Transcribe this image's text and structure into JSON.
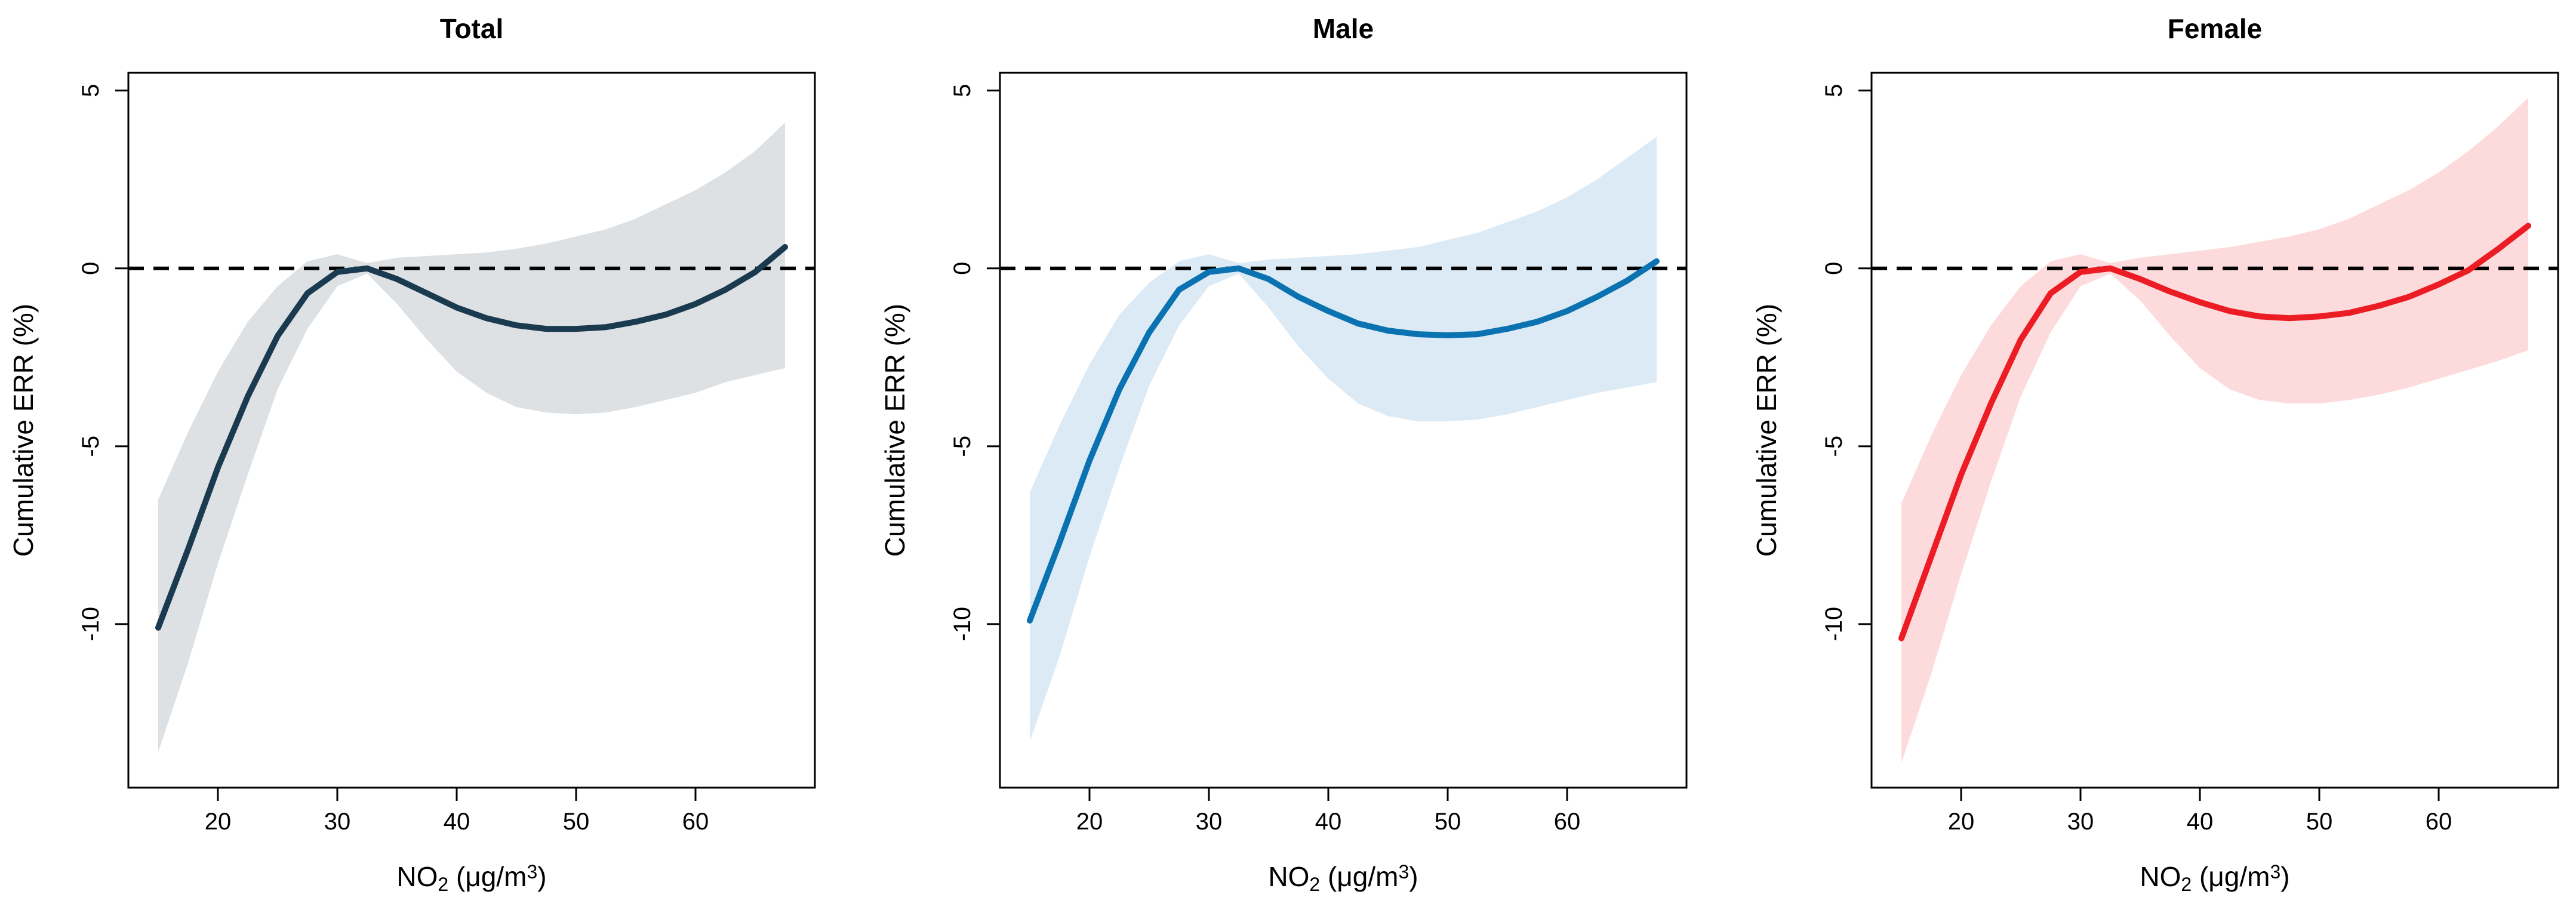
{
  "figure": {
    "reference_line_value": 0,
    "panels": [
      {
        "title": "Total",
        "line_color": "#1a3a4f",
        "band_color": "#dee1e4"
      },
      {
        "title": "Male",
        "line_color": "#0a72b0",
        "band_color": "#dceaf5"
      },
      {
        "title": "Female",
        "line_color": "#ec1c24",
        "band_color": "#fddbdc"
      }
    ]
  },
  "chart_data": [
    {
      "type": "line",
      "title": "Total",
      "xlabel": "NO2 (μg/m3)",
      "ylabel": "Cumulative ERR (%)",
      "xlim": [
        12.5,
        70
      ],
      "ylim": [
        -14.6,
        5.5
      ],
      "xticks": [
        "20",
        "30",
        "40",
        "50",
        "60"
      ],
      "yticks": [
        "5",
        "0",
        "-5",
        "-10"
      ],
      "reference_line": 0,
      "series": [
        {
          "name": "estimate",
          "x": [
            15,
            17.5,
            20,
            22.5,
            25,
            27.5,
            30,
            32.5,
            35,
            37.5,
            40,
            42.5,
            45,
            47.5,
            50,
            52.5,
            55,
            57.5,
            60,
            62.5,
            65,
            67.5
          ],
          "values": [
            -10.1,
            -7.9,
            -5.6,
            -3.6,
            -1.9,
            -0.7,
            -0.1,
            0.0,
            -0.3,
            -0.7,
            -1.1,
            -1.4,
            -1.6,
            -1.7,
            -1.7,
            -1.65,
            -1.5,
            -1.3,
            -1.0,
            -0.6,
            -0.1,
            0.6
          ]
        },
        {
          "name": "upper",
          "x": [
            15,
            17.5,
            20,
            22.5,
            25,
            27.5,
            30,
            32.5,
            35,
            37.5,
            40,
            42.5,
            45,
            47.5,
            50,
            52.5,
            55,
            57.5,
            60,
            62.5,
            65,
            67.5
          ],
          "values": [
            -6.5,
            -4.6,
            -2.9,
            -1.5,
            -0.5,
            0.2,
            0.4,
            0.15,
            0.3,
            0.35,
            0.4,
            0.45,
            0.55,
            0.7,
            0.9,
            1.1,
            1.4,
            1.8,
            2.2,
            2.7,
            3.3,
            4.1
          ]
        },
        {
          "name": "lower",
          "x": [
            15,
            17.5,
            20,
            22.5,
            25,
            27.5,
            30,
            32.5,
            35,
            37.5,
            40,
            42.5,
            45,
            47.5,
            50,
            52.5,
            55,
            57.5,
            60,
            62.5,
            65,
            67.5
          ],
          "values": [
            -13.6,
            -11.1,
            -8.3,
            -5.8,
            -3.4,
            -1.7,
            -0.5,
            -0.15,
            -1.0,
            -2.0,
            -2.9,
            -3.5,
            -3.9,
            -4.05,
            -4.1,
            -4.05,
            -3.9,
            -3.7,
            -3.5,
            -3.2,
            -3.0,
            -2.8
          ]
        }
      ]
    },
    {
      "type": "line",
      "title": "Male",
      "xlabel": "NO2 (μg/m3)",
      "ylabel": "Cumulative ERR (%)",
      "xlim": [
        12.5,
        70
      ],
      "ylim": [
        -14.6,
        5.5
      ],
      "xticks": [
        "20",
        "30",
        "40",
        "50",
        "60"
      ],
      "yticks": [
        "5",
        "0",
        "-5",
        "-10"
      ],
      "reference_line": 0,
      "series": [
        {
          "name": "estimate",
          "x": [
            15,
            17.5,
            20,
            22.5,
            25,
            27.5,
            30,
            32.5,
            35,
            37.5,
            40,
            42.5,
            45,
            47.5,
            50,
            52.5,
            55,
            57.5,
            60,
            62.5,
            65,
            67.5
          ],
          "values": [
            -9.9,
            -7.7,
            -5.4,
            -3.4,
            -1.8,
            -0.6,
            -0.1,
            0.0,
            -0.3,
            -0.8,
            -1.2,
            -1.55,
            -1.75,
            -1.85,
            -1.88,
            -1.85,
            -1.7,
            -1.5,
            -1.2,
            -0.8,
            -0.35,
            0.2
          ]
        },
        {
          "name": "upper",
          "x": [
            15,
            17.5,
            20,
            22.5,
            25,
            27.5,
            30,
            32.5,
            35,
            37.5,
            40,
            42.5,
            45,
            47.5,
            50,
            52.5,
            55,
            57.5,
            60,
            62.5,
            65,
            67.5
          ],
          "values": [
            -6.3,
            -4.4,
            -2.7,
            -1.3,
            -0.4,
            0.2,
            0.4,
            0.15,
            0.25,
            0.3,
            0.35,
            0.4,
            0.5,
            0.6,
            0.8,
            1.0,
            1.3,
            1.6,
            2.0,
            2.5,
            3.1,
            3.7
          ]
        },
        {
          "name": "lower",
          "x": [
            15,
            17.5,
            20,
            22.5,
            25,
            27.5,
            30,
            32.5,
            35,
            37.5,
            40,
            42.5,
            45,
            47.5,
            50,
            52.5,
            55,
            57.5,
            60,
            62.5,
            65,
            67.5
          ],
          "values": [
            -13.3,
            -10.9,
            -8.1,
            -5.6,
            -3.3,
            -1.6,
            -0.5,
            -0.15,
            -1.1,
            -2.2,
            -3.1,
            -3.8,
            -4.15,
            -4.3,
            -4.3,
            -4.25,
            -4.1,
            -3.9,
            -3.7,
            -3.5,
            -3.35,
            -3.2
          ]
        }
      ]
    },
    {
      "type": "line",
      "title": "Female",
      "xlabel": "NO2 (μg/m3)",
      "ylabel": "Cumulative ERR (%)",
      "xlim": [
        12.5,
        70
      ],
      "ylim": [
        -14.6,
        5.5
      ],
      "xticks": [
        "20",
        "30",
        "40",
        "50",
        "60"
      ],
      "yticks": [
        "5",
        "0",
        "-5",
        "-10"
      ],
      "reference_line": 0,
      "series": [
        {
          "name": "estimate",
          "x": [
            15,
            17.5,
            20,
            22.5,
            25,
            27.5,
            30,
            32.5,
            35,
            37.5,
            40,
            42.5,
            45,
            47.5,
            50,
            52.5,
            55,
            57.5,
            60,
            62.5,
            65,
            67.5
          ],
          "values": [
            -10.4,
            -8.1,
            -5.8,
            -3.8,
            -2.0,
            -0.7,
            -0.1,
            0.0,
            -0.3,
            -0.65,
            -0.95,
            -1.2,
            -1.35,
            -1.4,
            -1.35,
            -1.25,
            -1.05,
            -0.8,
            -0.45,
            -0.05,
            0.55,
            1.2
          ]
        },
        {
          "name": "upper",
          "x": [
            15,
            17.5,
            20,
            22.5,
            25,
            27.5,
            30,
            32.5,
            35,
            37.5,
            40,
            42.5,
            45,
            47.5,
            50,
            52.5,
            55,
            57.5,
            60,
            62.5,
            65,
            67.5
          ],
          "values": [
            -6.6,
            -4.7,
            -3.0,
            -1.6,
            -0.5,
            0.2,
            0.4,
            0.15,
            0.3,
            0.4,
            0.5,
            0.6,
            0.75,
            0.9,
            1.1,
            1.4,
            1.8,
            2.2,
            2.7,
            3.3,
            4.0,
            4.8
          ]
        },
        {
          "name": "lower",
          "x": [
            15,
            17.5,
            20,
            22.5,
            25,
            27.5,
            30,
            32.5,
            35,
            37.5,
            40,
            42.5,
            45,
            47.5,
            50,
            52.5,
            55,
            57.5,
            60,
            62.5,
            65,
            67.5
          ],
          "values": [
            -13.9,
            -11.4,
            -8.6,
            -6.0,
            -3.6,
            -1.8,
            -0.5,
            -0.15,
            -0.9,
            -1.9,
            -2.8,
            -3.4,
            -3.7,
            -3.8,
            -3.8,
            -3.7,
            -3.55,
            -3.35,
            -3.1,
            -2.85,
            -2.6,
            -2.3
          ]
        }
      ]
    }
  ]
}
